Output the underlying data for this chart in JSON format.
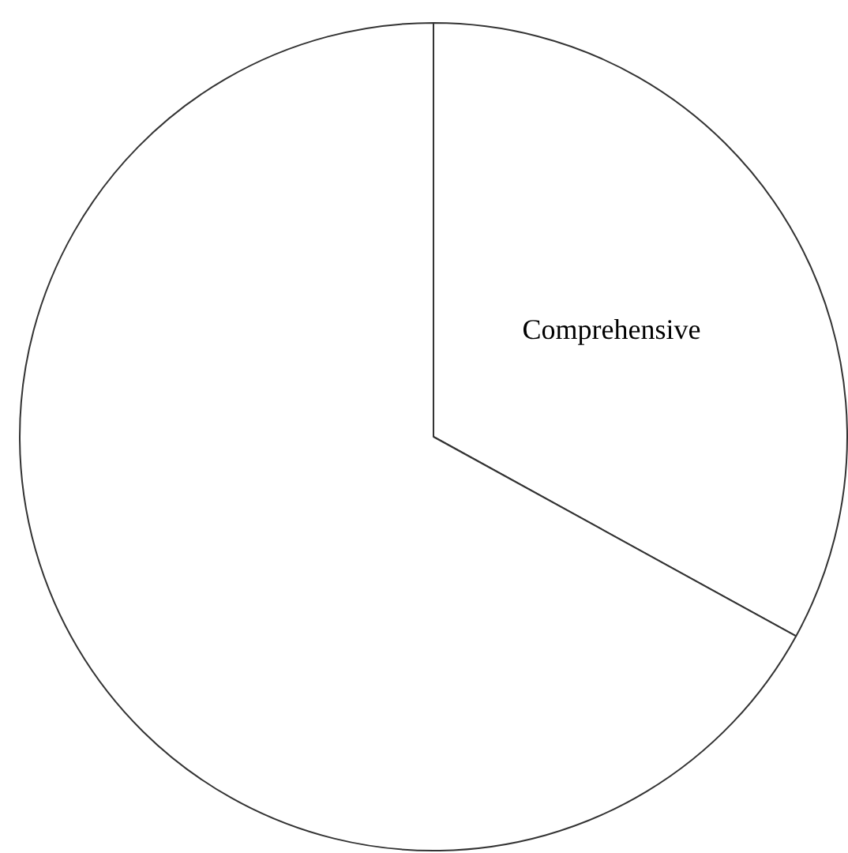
{
  "chart_data": {
    "type": "pie",
    "categories": [
      "Comprehensive",
      null
    ],
    "values": [
      33,
      67
    ],
    "colors": [
      "#ffffff",
      "#ffffff"
    ],
    "legend": false
  }
}
